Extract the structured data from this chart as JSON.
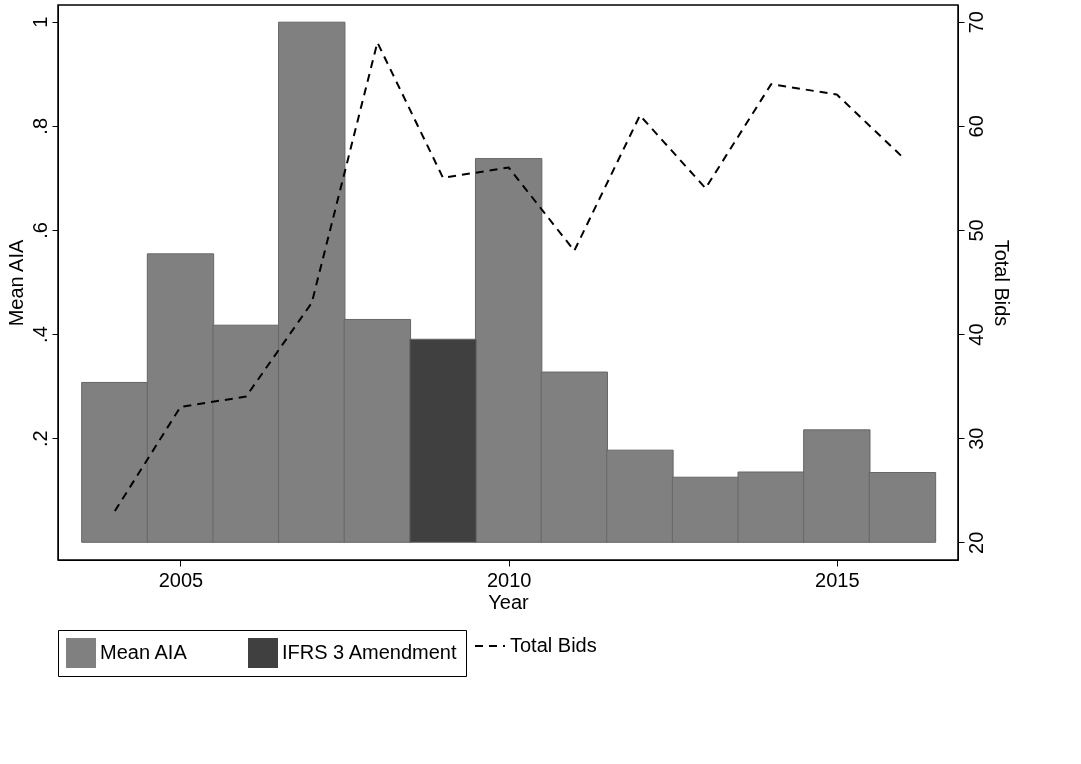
{
  "chart_data": {
    "type": "bar",
    "xlabel": "Year",
    "ylabel": "Mean AIA",
    "y2label": "Total Bids",
    "x": [
      2004,
      2005,
      2006,
      2007,
      2008,
      2009,
      2010,
      2011,
      2012,
      2013,
      2014,
      2015,
      2016
    ],
    "series": [
      {
        "name": "Mean AIA",
        "color": "#808080",
        "values": [
          0.307,
          0.554,
          0.417,
          0.999,
          0.428,
          null,
          0.737,
          0.327,
          0.177,
          0.125,
          0.135,
          0.216,
          0.134
        ]
      },
      {
        "name": "IFRS 3 Amendment",
        "color": "#404040",
        "values": [
          null,
          null,
          null,
          null,
          null,
          0.39,
          null,
          null,
          null,
          null,
          null,
          null,
          null
        ]
      },
      {
        "name": "Total Bids",
        "type": "line",
        "axis": "y2",
        "color": "#000000",
        "line_style": "dashed",
        "values": [
          23,
          33,
          34,
          43,
          68,
          55,
          56,
          48,
          61,
          54,
          64,
          63,
          57
        ]
      }
    ],
    "xlim": [
      2003.21,
      2016.77
    ],
    "xticks": [
      2005,
      2010,
      2015
    ],
    "ylim": [
      -0.034,
      1.032
    ],
    "yticks": [
      {
        "value": 0.2,
        "label": ".2"
      },
      {
        "value": 0.4,
        "label": ".4"
      },
      {
        "value": 0.6,
        "label": ".6"
      },
      {
        "value": 0.8,
        "label": ".8"
      },
      1
    ],
    "y2lim": [
      18.3,
      71.6
    ],
    "y2ticks": [
      20,
      30,
      40,
      50,
      60,
      70
    ],
    "grid": false,
    "legend": "bottom"
  }
}
